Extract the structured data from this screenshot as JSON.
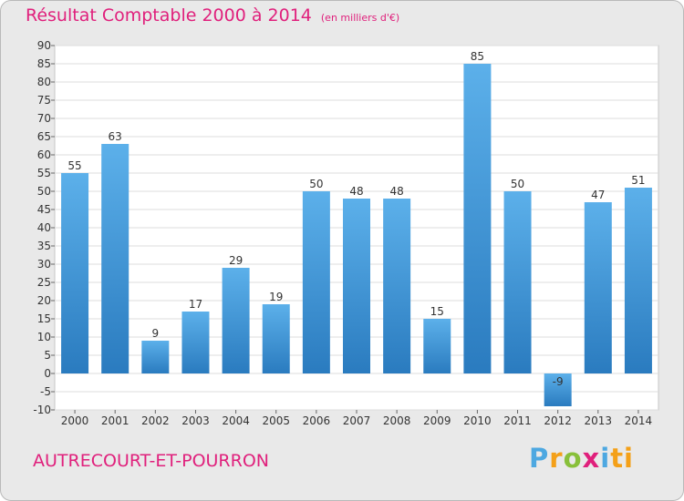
{
  "header": {
    "title": "Résultat Comptable 2000 à 2014",
    "unit": "(en milliers d'€)"
  },
  "footer": {
    "commune": "AUTRECOURT-ET-POURRON",
    "logo": [
      "P",
      "r",
      "o",
      "x",
      "i",
      "ti"
    ]
  },
  "colors": {
    "accent": "#e0207c",
    "bar_light": "#5cb0ea",
    "bar_dark": "#2a7bbf"
  },
  "chart_data": {
    "type": "bar",
    "title": "Résultat Comptable 2000 à 2014",
    "xlabel": "",
    "ylabel": "",
    "categories": [
      "2000",
      "2001",
      "2002",
      "2003",
      "2004",
      "2005",
      "2006",
      "2007",
      "2008",
      "2009",
      "2010",
      "2011",
      "2012",
      "2013",
      "2014"
    ],
    "values": [
      55,
      63,
      9,
      17,
      29,
      19,
      50,
      48,
      48,
      15,
      85,
      50,
      -9,
      47,
      51
    ],
    "labels": [
      "55",
      "63",
      "9",
      "17",
      "29",
      "19",
      "50",
      "48",
      "48",
      "15",
      "85",
      "50",
      "-9",
      "47",
      "51"
    ],
    "ylim": [
      -10,
      90
    ],
    "ytick_step": 5,
    "grid": true,
    "legend": "none"
  }
}
